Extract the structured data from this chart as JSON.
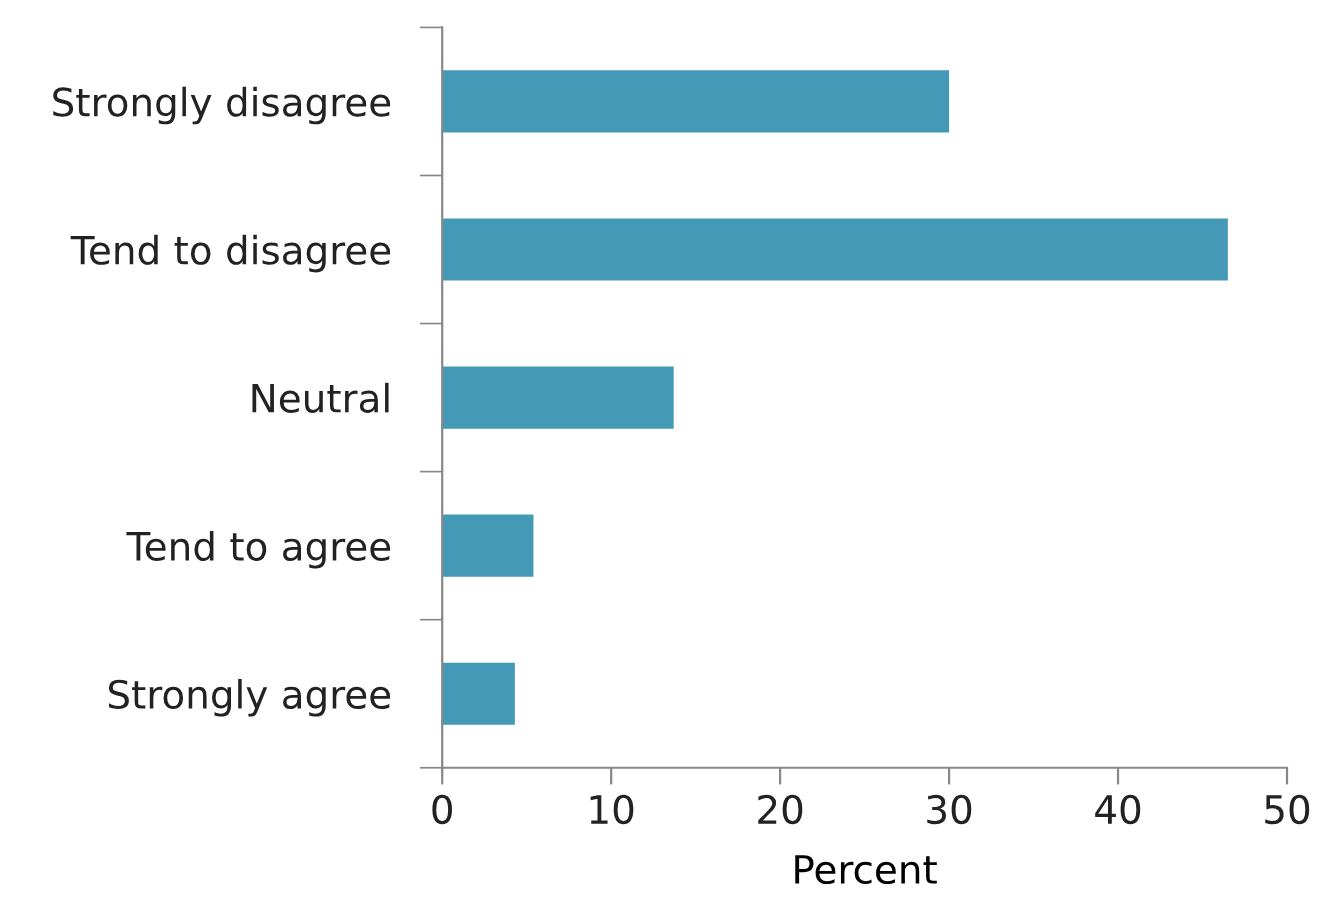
{
  "chart_data": {
    "type": "bar",
    "orientation": "horizontal",
    "xlabel": "Percent",
    "categories": [
      "Strongly disagree",
      "Tend to disagree",
      "Neutral",
      "Tend to agree",
      "Strongly agree"
    ],
    "values": [
      30.0,
      46.5,
      13.7,
      5.4,
      4.3
    ],
    "color": "#4499b6",
    "xlim": [
      0,
      50
    ],
    "xticks": [
      0,
      10,
      20,
      30,
      40,
      50
    ],
    "grid": false,
    "legend": false
  }
}
